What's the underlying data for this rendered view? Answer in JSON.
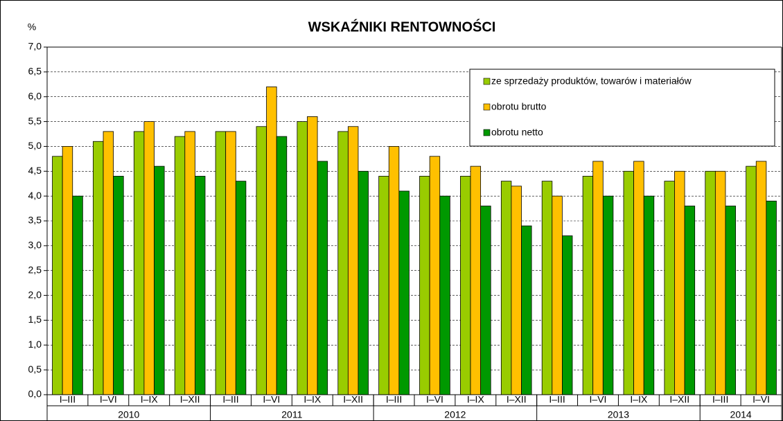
{
  "chart_data": {
    "type": "bar",
    "title": "WSKAŹNIKI RENTOWNOŚCI",
    "y_label": "%",
    "groups": [
      {
        "label": "2010",
        "categories": [
          "I–III",
          "I–VI",
          "I–IX",
          "I–XII"
        ]
      },
      {
        "label": "2011",
        "categories": [
          "I–III",
          "I–VI",
          "I–IX",
          "I–XII"
        ]
      },
      {
        "label": "2012",
        "categories": [
          "I–III",
          "I–VI",
          "I–IX",
          "I–XII"
        ]
      },
      {
        "label": "2013",
        "categories": [
          "I–III",
          "I–VI",
          "I–IX",
          "I–XII"
        ]
      },
      {
        "label": "2014",
        "categories": [
          "I–III",
          "I–VI"
        ]
      }
    ],
    "series": [
      {
        "name": "ze sprzedaży produktów, towarów i materiałów",
        "color": "#99cc00",
        "values": [
          4.8,
          5.1,
          5.3,
          5.2,
          5.3,
          5.4,
          5.5,
          5.3,
          4.4,
          4.4,
          4.4,
          4.3,
          4.3,
          4.4,
          4.5,
          4.3,
          4.5,
          4.6
        ]
      },
      {
        "name": "obrotu brutto",
        "color": "#ffc000",
        "values": [
          5.0,
          5.3,
          5.5,
          5.3,
          5.3,
          6.2,
          5.6,
          5.4,
          5.0,
          4.8,
          4.6,
          4.2,
          4.0,
          4.7,
          4.7,
          4.5,
          4.5,
          4.7
        ]
      },
      {
        "name": "obrotu netto",
        "color": "#009900",
        "values": [
          4.0,
          4.4,
          4.6,
          4.4,
          4.3,
          5.2,
          4.7,
          4.5,
          4.1,
          4.0,
          3.8,
          3.4,
          3.2,
          4.0,
          4.0,
          3.8,
          3.8,
          3.9
        ]
      }
    ],
    "ylim": [
      0,
      7
    ],
    "yticks": [
      {
        "value": 0,
        "label": "0,0"
      },
      {
        "value": 0.5,
        "label": "0,5"
      },
      {
        "value": 1,
        "label": "1,0"
      },
      {
        "value": 1.5,
        "label": "1,5"
      },
      {
        "value": 2,
        "label": "2,0"
      },
      {
        "value": 2.5,
        "label": "2,5"
      },
      {
        "value": 3,
        "label": "3,0"
      },
      {
        "value": 3.5,
        "label": "3,5"
      },
      {
        "value": 4,
        "label": "4,0"
      },
      {
        "value": 4.5,
        "label": "4,5"
      },
      {
        "value": 5,
        "label": "5,0"
      },
      {
        "value": 5.5,
        "label": "5,5"
      },
      {
        "value": 6,
        "label": "6,0"
      },
      {
        "value": 6.5,
        "label": "6,5"
      },
      {
        "value": 7,
        "label": "7,0"
      }
    ],
    "grid": true,
    "legend": "upper right"
  }
}
